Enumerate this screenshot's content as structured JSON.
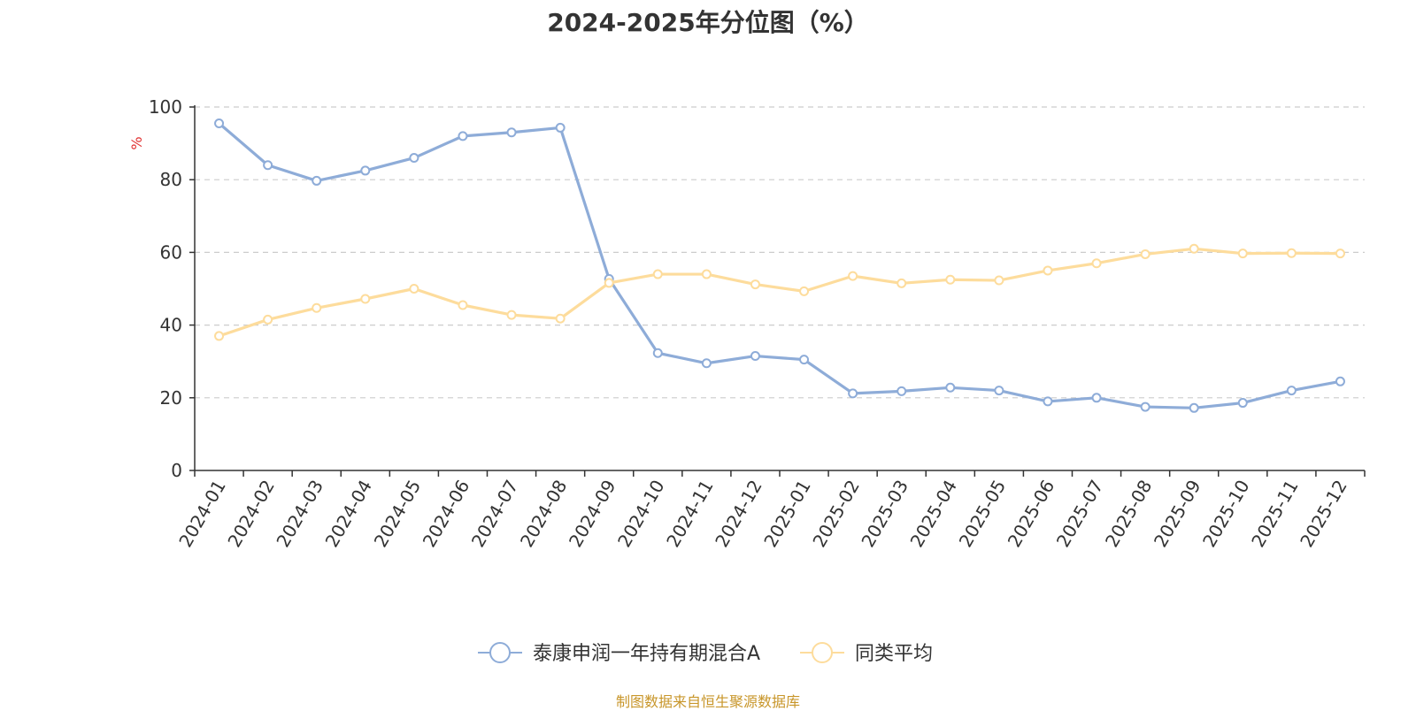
{
  "chart_data": {
    "type": "line",
    "title": "2024-2025年分位图（%）",
    "ylabel": "%",
    "xlabel": "",
    "ylim": [
      0,
      100
    ],
    "yticks": [
      0,
      20,
      40,
      60,
      80,
      100
    ],
    "grid": true,
    "legend_position": "bottom-center",
    "categories": [
      "2024-01",
      "2024-02",
      "2024-03",
      "2024-04",
      "2024-05",
      "2024-06",
      "2024-07",
      "2024-08",
      "2024-09",
      "2024-10",
      "2024-11",
      "2024-12",
      "2025-01",
      "2025-02",
      "2025-03",
      "2025-04",
      "2025-05",
      "2025-06",
      "2025-07",
      "2025-08",
      "2025-09",
      "2025-10",
      "2025-11",
      "2025-12"
    ],
    "series": [
      {
        "name": "泰康申润一年持有期混合A",
        "color": "#8eacd8",
        "values": [
          95.5,
          84,
          79.7,
          82.5,
          86,
          92,
          93,
          94.3,
          52.7,
          32.3,
          29.5,
          31.5,
          30.5,
          21.2,
          21.8,
          22.8,
          22,
          19,
          20,
          17.5,
          17.2,
          18.6,
          22,
          24.5
        ]
      },
      {
        "name": "同类平均",
        "color": "#fddc9c",
        "values": [
          37,
          41.5,
          44.7,
          47.2,
          50,
          45.5,
          42.8,
          41.8,
          51.6,
          54,
          54,
          51.2,
          49.3,
          53.5,
          51.5,
          52.5,
          52.3,
          55,
          57,
          59.5,
          61,
          59.7,
          59.8,
          59.7
        ]
      }
    ]
  },
  "footer": "制图数据来自恒生聚源数据库"
}
